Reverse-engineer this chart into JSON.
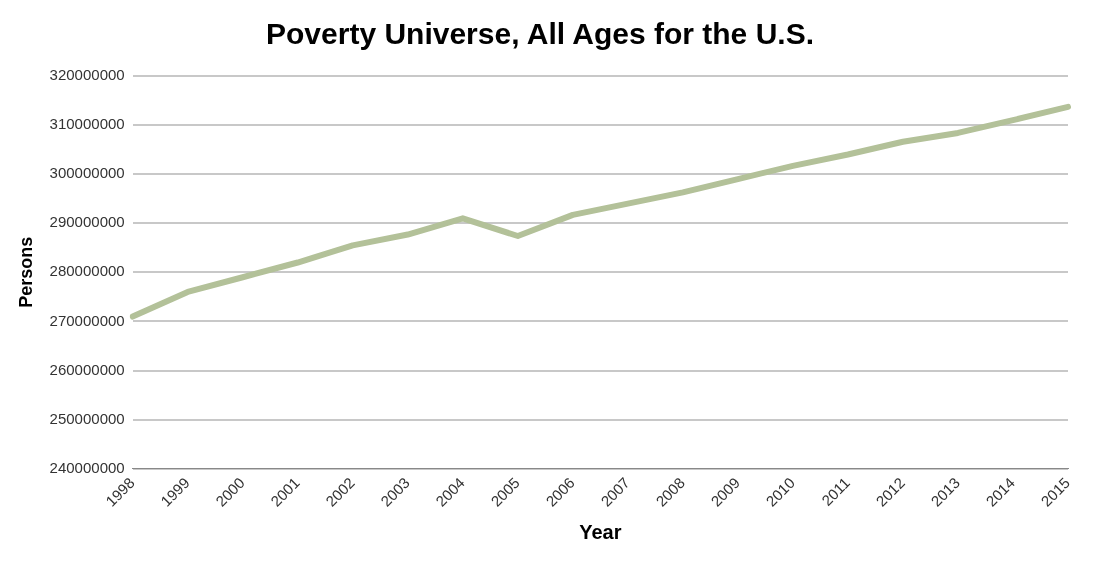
{
  "chart_data": {
    "type": "line",
    "title": "Poverty Universe, All Ages for the U.S.",
    "xlabel": "Year",
    "ylabel": "Persons",
    "categories": [
      "1998",
      "1999",
      "2000",
      "2001",
      "2002",
      "2003",
      "2004",
      "2005",
      "2006",
      "2007",
      "2008",
      "2009",
      "2010",
      "2011",
      "2012",
      "2013",
      "2014",
      "2015"
    ],
    "series": [
      {
        "color": "#b3c199",
        "values": [
          271000000,
          276000000,
          279000000,
          282000000,
          285500000,
          287700000,
          291000000,
          287400000,
          291700000,
          294000000,
          296300000,
          299000000,
          301700000,
          304000000,
          306600000,
          308400000,
          311000000,
          313700000
        ]
      }
    ],
    "ylim": [
      240000000,
      320000000
    ],
    "yticks": [
      240000000,
      250000000,
      260000000,
      270000000,
      280000000,
      290000000,
      300000000,
      310000000,
      320000000
    ],
    "grid": "y",
    "legend": false,
    "marker": "none",
    "line_style": "solid"
  }
}
